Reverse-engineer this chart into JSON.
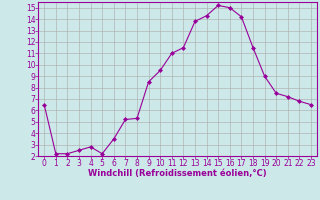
{
  "x": [
    0,
    1,
    2,
    3,
    4,
    5,
    6,
    7,
    8,
    9,
    10,
    11,
    12,
    13,
    14,
    15,
    16,
    17,
    18,
    19,
    20,
    21,
    22,
    23
  ],
  "y": [
    6.5,
    2.2,
    2.2,
    2.5,
    2.8,
    2.2,
    3.5,
    5.2,
    5.3,
    8.5,
    9.5,
    11.0,
    11.5,
    13.8,
    14.3,
    15.2,
    15.0,
    14.2,
    11.5,
    9.0,
    7.5,
    7.2,
    6.8,
    6.5
  ],
  "line_color": "#990099",
  "marker": "D",
  "marker_size": 2,
  "bg_color": "#cce8e8",
  "grid_color": "#aaaaaa",
  "xlabel": "Windchill (Refroidissement éolien,°C)",
  "xlim": [
    -0.5,
    23.5
  ],
  "ylim": [
    2,
    15.5
  ],
  "yticks": [
    2,
    3,
    4,
    5,
    6,
    7,
    8,
    9,
    10,
    11,
    12,
    13,
    14,
    15
  ],
  "xticks": [
    0,
    1,
    2,
    3,
    4,
    5,
    6,
    7,
    8,
    9,
    10,
    11,
    12,
    13,
    14,
    15,
    16,
    17,
    18,
    19,
    20,
    21,
    22,
    23
  ],
  "tick_color": "#990099",
  "label_color": "#990099",
  "axis_color": "#990099",
  "xlabel_fontsize": 6,
  "tick_fontsize": 5.5
}
